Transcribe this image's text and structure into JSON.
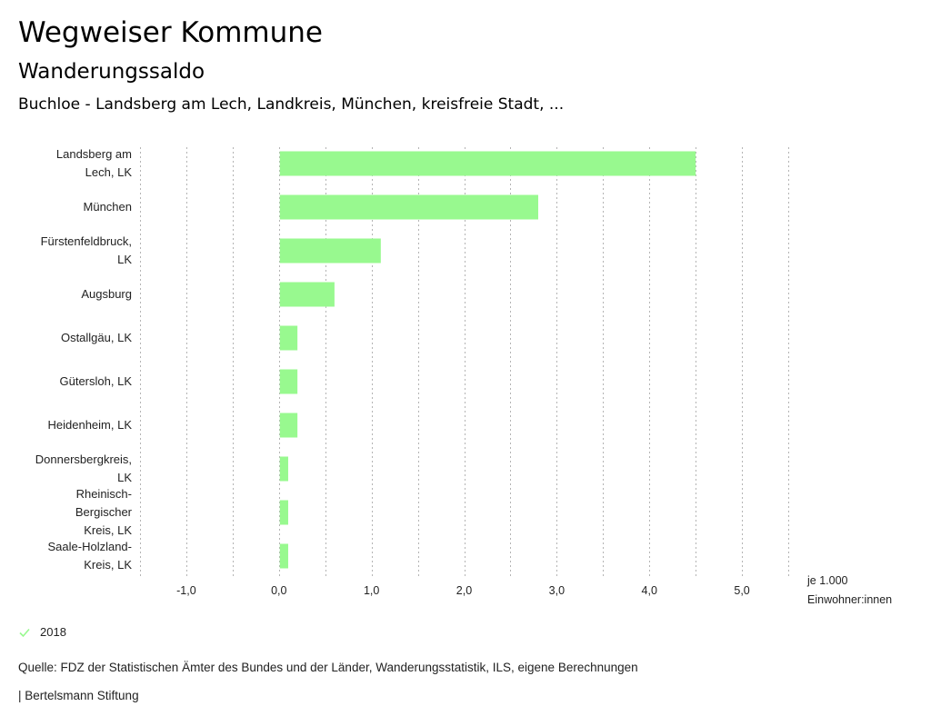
{
  "header": {
    "title": "Wegweiser Kommune",
    "subtitle": "Wanderungssaldo",
    "selection": "Buchloe - Landsberg am Lech, Landkreis, München, kreisfreie Stadt, ..."
  },
  "legend": {
    "items": [
      {
        "label": "2018",
        "icon": "check-icon",
        "color": "#98f98f"
      }
    ]
  },
  "footer": {
    "source": "Quelle: FDZ der Statistischen Ämter des Bundes und der Länder, Wanderungsstatistik, ILS, eigene Berechnungen",
    "brand": "| Bertelsmann Stiftung"
  },
  "chart_data": {
    "type": "bar",
    "orientation": "horizontal",
    "title": "Wanderungssaldo",
    "xlabel": "je 1.000 Einwohner:innen",
    "xlabel_lines": [
      "je 1.000",
      "Einwohner:innen"
    ],
    "ylabel": "",
    "xlim": [
      -1.5,
      5.5
    ],
    "grid": true,
    "grid_step": 0.5,
    "xticks": [
      -1.0,
      0.0,
      1.0,
      2.0,
      3.0,
      4.0,
      5.0
    ],
    "xtick_labels": [
      "-1,0",
      "0,0",
      "1,0",
      "2,0",
      "3,0",
      "4,0",
      "5,0"
    ],
    "bar_color": "#98f98f",
    "categories": [
      [
        "Landsberg am",
        "Lech, LK"
      ],
      [
        "München"
      ],
      [
        "Fürstenfeldbruck,",
        "LK"
      ],
      [
        "Augsburg"
      ],
      [
        "Ostallgäu, LK"
      ],
      [
        "Gütersloh, LK"
      ],
      [
        "Heidenheim, LK"
      ],
      [
        "Donnersbergkreis,",
        "LK"
      ],
      [
        "Rheinisch-",
        "Bergischer",
        "Kreis, LK"
      ],
      [
        "Saale-Holzland-",
        "Kreis, LK"
      ]
    ],
    "series": [
      {
        "name": "2018",
        "values": [
          4.5,
          2.8,
          1.1,
          0.6,
          0.2,
          0.2,
          0.2,
          0.1,
          0.1,
          0.1
        ]
      }
    ],
    "legend": "bottom-left"
  }
}
